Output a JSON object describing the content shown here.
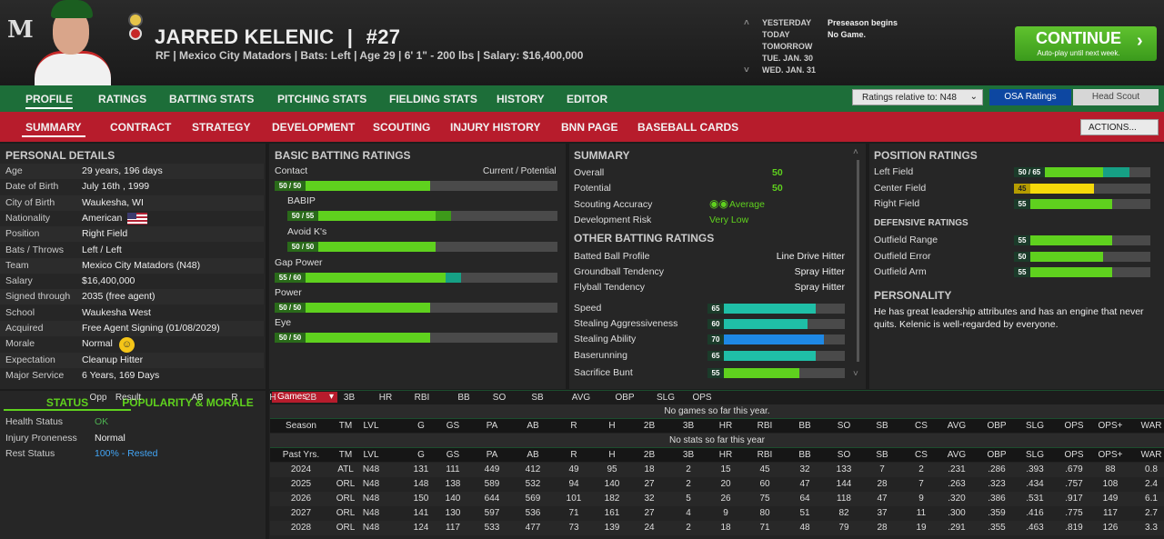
{
  "header": {
    "logo": "M",
    "player_name": "JARRED KELENIC",
    "separator": "|",
    "number": "#27",
    "info": "RF | Mexico City Matadors  |  Bats: Left  |  Age 29  |  6' 1\" - 200 lbs  |  Salary: $16,400,000",
    "calendar": [
      "YESTERDAY",
      "TODAY",
      "TOMORROW",
      "TUE. JAN. 30",
      "WED. JAN. 31"
    ],
    "events": [
      "Preseason begins",
      "No Game."
    ],
    "continue_label": "CONTINUE",
    "continue_sub": "Auto-play until next week."
  },
  "nav_main": {
    "items": [
      "PROFILE",
      "RATINGS",
      "BATTING STATS",
      "PITCHING STATS",
      "FIELDING STATS",
      "HISTORY",
      "EDITOR"
    ],
    "ratings_relative": "Ratings relative to: N48",
    "toggle_a": "OSA Ratings",
    "toggle_b": "Head Scout"
  },
  "nav_sub": {
    "items": [
      "SUMMARY",
      "CONTRACT",
      "STRATEGY",
      "DEVELOPMENT",
      "SCOUTING",
      "INJURY HISTORY",
      "BNN PAGE",
      "BASEBALL CARDS"
    ],
    "actions": "ACTIONS..."
  },
  "personal": {
    "title": "PERSONAL DETAILS",
    "rows": [
      {
        "label": "Age",
        "value": "29 years, 196 days"
      },
      {
        "label": "Date of Birth",
        "value": "July 16th , 1999"
      },
      {
        "label": "City of Birth",
        "value": "Waukesha, WI"
      },
      {
        "label": "Nationality",
        "value": "American"
      },
      {
        "label": "Position",
        "value": "Right Field"
      },
      {
        "label": "Bats / Throws",
        "value": "Left / Left"
      },
      {
        "label": "Team",
        "value": "Mexico City Matadors (N48)"
      },
      {
        "label": "Salary",
        "value": "$16,400,000"
      },
      {
        "label": "Signed through",
        "value": "2035 (free agent)"
      },
      {
        "label": "School",
        "value": "Waukesha West"
      },
      {
        "label": "Acquired",
        "value": "Free Agent Signing (01/08/2029)"
      },
      {
        "label": "Morale",
        "value": "Normal"
      },
      {
        "label": "Expectation",
        "value": "Cleanup Hitter"
      },
      {
        "label": "Major Service",
        "value": "6 Years, 169 Days"
      }
    ]
  },
  "status": {
    "tab_a": "STATUS",
    "tab_b": "POPULARITY & MORALE",
    "rows": [
      {
        "label": "Health Status",
        "value": "OK",
        "color": "#4caf50"
      },
      {
        "label": "Injury Proneness",
        "value": "Normal",
        "color": "#eeeeee"
      },
      {
        "label": "Rest Status",
        "value": "100% - Rested",
        "color": "#42a5f5"
      }
    ]
  },
  "batting": {
    "title": "BASIC BATTING RATINGS",
    "cur_pot": "Current / Potential",
    "ratings": [
      {
        "label": "Contact",
        "badge": "50 / 50",
        "current": 50,
        "potential": 50,
        "indent": false
      },
      {
        "label": "BABIP",
        "badge": "50 / 55",
        "current": 50,
        "potential": 55,
        "indent": true
      },
      {
        "label": "Avoid K's",
        "badge": "50 / 50",
        "current": 50,
        "potential": 50,
        "indent": true
      },
      {
        "label": "Gap Power",
        "badge": "55 / 60",
        "current": 55,
        "potential": 60,
        "indent": false
      },
      {
        "label": "Power",
        "badge": "50 / 50",
        "current": 50,
        "potential": 50,
        "indent": false
      },
      {
        "label": "Eye",
        "badge": "50 / 50",
        "current": 50,
        "potential": 50,
        "indent": false
      }
    ]
  },
  "summary": {
    "title": "SUMMARY",
    "overall_label": "Overall",
    "overall": "50",
    "potential_label": "Potential",
    "potential": "50",
    "accuracy_label": "Scouting Accuracy",
    "accuracy": "Average",
    "risk_label": "Development Risk",
    "risk": "Very Low",
    "other_title": "OTHER BATTING RATINGS",
    "other": [
      {
        "label": "Batted Ball Profile",
        "value": "Line Drive Hitter"
      },
      {
        "label": "Groundball Tendency",
        "value": "Spray Hitter"
      },
      {
        "label": "Flyball Tendency",
        "value": "Spray Hitter"
      }
    ],
    "speed": [
      {
        "label": "Speed",
        "value": 65,
        "badge": "65",
        "color": "#1fbfa7"
      },
      {
        "label": "Stealing Aggressiveness",
        "value": 60,
        "badge": "60",
        "color": "#1fbfa7"
      },
      {
        "label": "Stealing Ability",
        "value": 70,
        "badge": "70",
        "color": "#1e88e5"
      },
      {
        "label": "Baserunning",
        "value": 65,
        "badge": "65",
        "color": "#1fbfa7"
      },
      {
        "label": "Sacrifice Bunt",
        "value": 55,
        "badge": "55",
        "color": "#5fd11e"
      }
    ]
  },
  "position": {
    "title": "POSITION RATINGS",
    "ratings": [
      {
        "label": "Left Field",
        "badge": "50 / 65",
        "current": 50,
        "potential": 65,
        "color": "#5fd11e"
      },
      {
        "label": "Center Field",
        "badge": "45",
        "current": 45,
        "potential": 45,
        "color": "#f5d90a"
      },
      {
        "label": "Right Field",
        "badge": "55",
        "current": 55,
        "potential": 55,
        "color": "#5fd11e"
      }
    ],
    "def_title": "DEFENSIVE RATINGS",
    "defense": [
      {
        "label": "Outfield Range",
        "badge": "55",
        "value": 55
      },
      {
        "label": "Outfield Error",
        "badge": "50",
        "value": 50
      },
      {
        "label": "Outfield Arm",
        "badge": "55",
        "value": 55
      }
    ],
    "pers_title": "PERSONALITY",
    "personality": "He has great leadership attributes and has an engine that never quits. Kelenic is well-regarded by everyone."
  },
  "games": {
    "dropdown": "Games",
    "headers": [
      "Opp",
      "Result",
      "AB",
      "R",
      "H",
      "2B",
      "3B",
      "HR",
      "RBI",
      "BB",
      "SO",
      "SB",
      "AVG",
      "OBP",
      "SLG",
      "OPS"
    ],
    "empty": "No games so far this year."
  },
  "season": {
    "headers": [
      "Season",
      "TM",
      "LVL",
      "G",
      "GS",
      "PA",
      "AB",
      "R",
      "H",
      "2B",
      "3B",
      "HR",
      "RBI",
      "BB",
      "SO",
      "SB",
      "CS",
      "AVG",
      "OBP",
      "SLG",
      "OPS",
      "OPS+",
      "WAR"
    ],
    "empty": "No stats so far this year"
  },
  "past": {
    "headers": [
      "Past Yrs.",
      "TM",
      "LVL",
      "G",
      "GS",
      "PA",
      "AB",
      "R",
      "H",
      "2B",
      "3B",
      "HR",
      "RBI",
      "BB",
      "SO",
      "SB",
      "CS",
      "AVG",
      "OBP",
      "SLG",
      "OPS",
      "OPS+",
      "WAR"
    ],
    "rows": [
      [
        "2024",
        "ATL",
        "N48",
        "131",
        "111",
        "449",
        "412",
        "49",
        "95",
        "18",
        "2",
        "15",
        "45",
        "32",
        "133",
        "7",
        "2",
        ".231",
        ".286",
        ".393",
        ".679",
        "88",
        "0.8"
      ],
      [
        "2025",
        "ORL",
        "N48",
        "148",
        "138",
        "589",
        "532",
        "94",
        "140",
        "27",
        "2",
        "20",
        "60",
        "47",
        "144",
        "28",
        "7",
        ".263",
        ".323",
        ".434",
        ".757",
        "108",
        "2.4"
      ],
      [
        "2026",
        "ORL",
        "N48",
        "150",
        "140",
        "644",
        "569",
        "101",
        "182",
        "32",
        "5",
        "26",
        "75",
        "64",
        "118",
        "47",
        "9",
        ".320",
        ".386",
        ".531",
        ".917",
        "149",
        "6.1"
      ],
      [
        "2027",
        "ORL",
        "N48",
        "141",
        "130",
        "597",
        "536",
        "71",
        "161",
        "27",
        "4",
        "9",
        "80",
        "51",
        "82",
        "37",
        "11",
        ".300",
        ".359",
        ".416",
        ".775",
        "117",
        "2.7"
      ],
      [
        "2028",
        "ORL",
        "N48",
        "124",
        "117",
        "533",
        "477",
        "73",
        "139",
        "24",
        "2",
        "18",
        "71",
        "48",
        "79",
        "28",
        "19",
        ".291",
        ".355",
        ".463",
        ".819",
        "126",
        "3.3"
      ]
    ]
  }
}
